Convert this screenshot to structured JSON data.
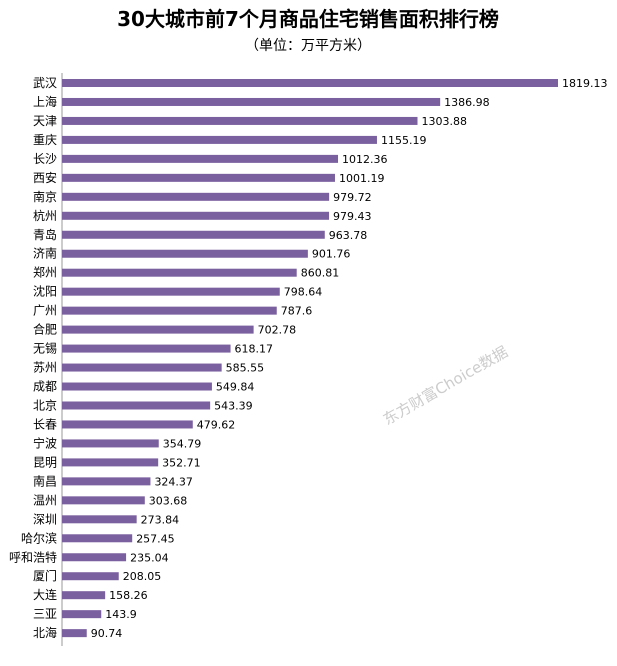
{
  "chart_data": {
    "type": "bar",
    "orientation": "horizontal",
    "title": "30大城市前7个月商品住宅销售面积排行榜",
    "subtitle": "（单位：万平方米）",
    "categories": [
      "武汉",
      "上海",
      "天津",
      "重庆",
      "长沙",
      "西安",
      "南京",
      "杭州",
      "青岛",
      "济南",
      "郑州",
      "沈阳",
      "广州",
      "合肥",
      "无锡",
      "苏州",
      "成都",
      "北京",
      "长春",
      "宁波",
      "昆明",
      "南昌",
      "温州",
      "深圳",
      "哈尔滨",
      "呼和浩特",
      "厦门",
      "大连",
      "三亚",
      "北海"
    ],
    "values": [
      1819.13,
      1386.98,
      1303.88,
      1155.19,
      1012.36,
      1001.19,
      979.72,
      979.43,
      963.78,
      901.76,
      860.81,
      798.64,
      787.6,
      702.78,
      618.17,
      585.55,
      549.84,
      543.39,
      479.62,
      354.79,
      352.71,
      324.37,
      303.68,
      273.84,
      257.45,
      235.04,
      208.05,
      158.26,
      143.9,
      90.74
    ],
    "xlim": [
      0,
      1900
    ],
    "grid": false,
    "legend": "none",
    "bar_color": "#7b609f"
  },
  "watermark": "东方财富Choice数据"
}
